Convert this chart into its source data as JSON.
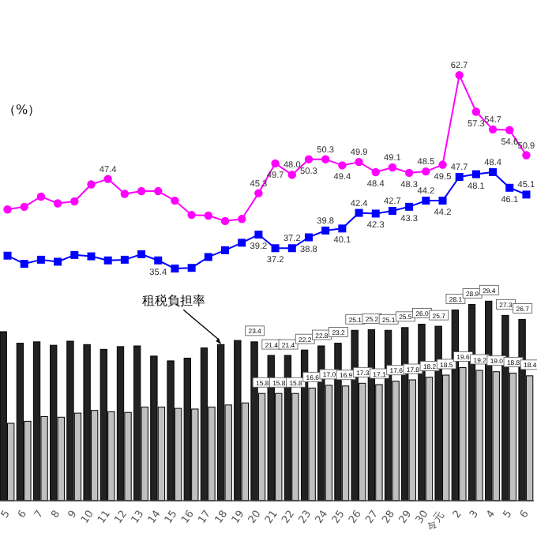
{
  "chart_data": {
    "type": "bar",
    "ylabel": "（%）",
    "categories": [
      "5",
      "6",
      "7",
      "8",
      "9",
      "10",
      "11",
      "12",
      "13",
      "14",
      "15",
      "16",
      "17",
      "18",
      "19",
      "20",
      "21",
      "22",
      "23",
      "24",
      "25",
      "26",
      "27",
      "28",
      "29",
      "30",
      "令元",
      "2",
      "3",
      "4",
      "5",
      "6"
    ],
    "tick_labels": "x",
    "series": [
      {
        "color": "#222222",
        "values": [
          24.9,
          23.2,
          23.4,
          22.9,
          23.5,
          23.0,
          22.3,
          22.7,
          22.8,
          21.3,
          20.6,
          21.0,
          22.5,
          23.0,
          23.6,
          23.4,
          21.4,
          21.4,
          22.2,
          22.8,
          23.2,
          25.1,
          25.2,
          25.1,
          25.5,
          26.0,
          25.7,
          28.1,
          28.9,
          29.4,
          27.3,
          26.7
        ],
        "value_labels": [
          null,
          null,
          null,
          null,
          null,
          null,
          null,
          null,
          null,
          null,
          null,
          null,
          null,
          null,
          null,
          "23.4",
          "21.4",
          "21.4",
          "22.2",
          "22.8",
          "23.2",
          "25.1",
          "25.2",
          "25.1",
          "25.5",
          "26.0",
          "25.7",
          "28.1",
          "28.9",
          "29.4",
          "27.3",
          "26.7"
        ]
      },
      {
        "color": "#c0c0c0",
        "values": [
          11.4,
          11.7,
          12.4,
          12.3,
          12.9,
          13.3,
          13.1,
          13.0,
          13.8,
          13.8,
          13.6,
          13.5,
          13.8,
          14.1,
          14.4,
          15.8,
          15.8,
          15.8,
          16.6,
          17.0,
          16.9,
          17.3,
          17.1,
          17.6,
          17.8,
          18.2,
          18.5,
          19.6,
          19.2,
          19.0,
          18.8,
          18.4
        ],
        "value_labels": [
          null,
          null,
          null,
          null,
          null,
          null,
          null,
          null,
          null,
          null,
          null,
          null,
          null,
          null,
          null,
          "15.8",
          "15.8",
          "15.8",
          "16.6",
          "17.0",
          "16.9",
          "17.3",
          "17.1",
          "17.6",
          "17.8",
          "18.2",
          "18.5",
          "19.6",
          "19.2",
          "19.0",
          "18.8",
          "18.4"
        ]
      },
      {
        "type": "line",
        "color": "#ff00ff",
        "marker": "circle",
        "values": [
          42.9,
          43.3,
          44.8,
          43.8,
          44.1,
          46.6,
          47.4,
          45.2,
          45.6,
          45.6,
          44.2,
          42.1,
          42.0,
          41.2,
          41.5,
          45.3,
          49.7,
          48.0,
          50.3,
          50.3,
          49.4,
          49.9,
          48.4,
          49.1,
          48.3,
          48.5,
          49.5,
          62.7,
          57.3,
          54.7,
          54.6,
          50.9
        ],
        "value_labels": [
          null,
          null,
          null,
          null,
          null,
          null,
          "47.4",
          null,
          null,
          null,
          null,
          null,
          null,
          null,
          null,
          "45.3",
          "49.7",
          "48.0",
          "50.3",
          "50.3",
          "49.4",
          "49.9",
          "48.4",
          "49.1",
          "48.3",
          "48.5",
          "49.5",
          "62.7",
          "57.3",
          "54.7",
          "54.6",
          "50.9"
        ]
      },
      {
        "type": "line",
        "color": "#0000ff",
        "marker": "square",
        "values": [
          36.1,
          34.9,
          35.5,
          35.2,
          36.2,
          36.0,
          35.4,
          35.5,
          36.3,
          35.4,
          34.2,
          34.3,
          35.9,
          36.9,
          38.0,
          39.2,
          37.2,
          37.2,
          38.8,
          39.8,
          40.1,
          42.4,
          42.3,
          42.7,
          43.3,
          44.2,
          44.2,
          47.7,
          48.1,
          48.4,
          46.1,
          45.1
        ],
        "value_labels": [
          null,
          null,
          null,
          null,
          null,
          null,
          null,
          null,
          null,
          "35.4",
          null,
          null,
          null,
          null,
          null,
          "39.2",
          "37.2",
          "37.2",
          "38.8",
          "39.8",
          "40.1",
          "42.4",
          "42.3",
          "42.7",
          "43.3",
          "44.2",
          "44.2",
          "47.7",
          "48.1",
          "48.4",
          "46.1",
          "45.1"
        ]
      }
    ],
    "annotations": [
      {
        "text": "租税負担率",
        "x": "18",
        "y": 23.0
      }
    ]
  }
}
